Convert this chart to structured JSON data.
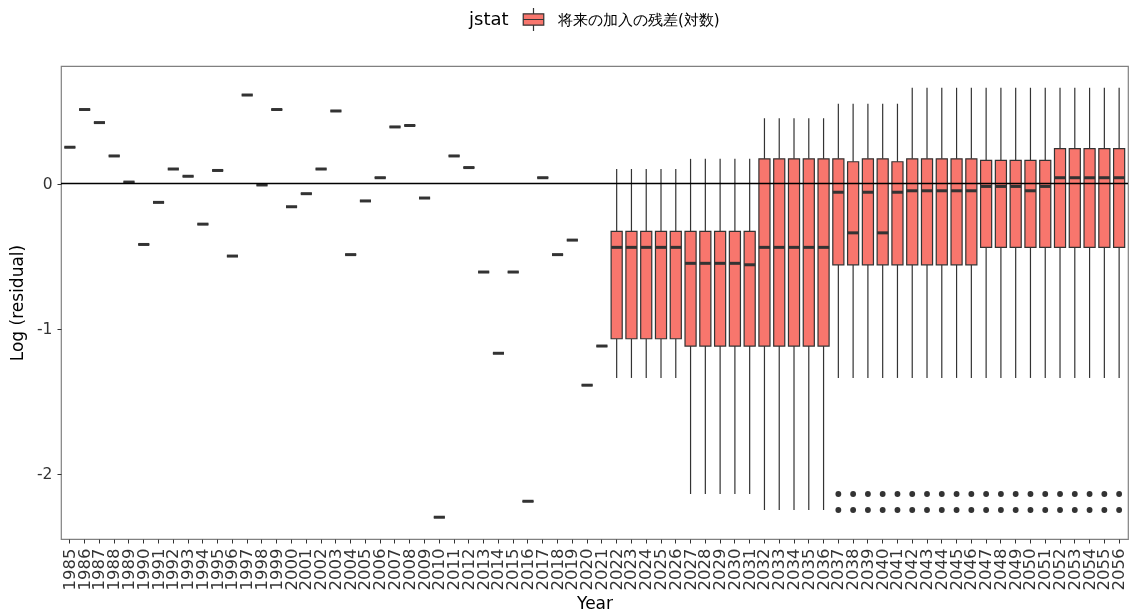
{
  "chart_data": {
    "type": "box",
    "xlabel": "Year",
    "ylabel": "Log (residual)",
    "legend_title": "jstat",
    "legend": "top",
    "categories": [
      "1985",
      "1986",
      "1987",
      "1988",
      "1989",
      "1990",
      "1991",
      "1992",
      "1993",
      "1994",
      "1995",
      "1996",
      "1997",
      "1998",
      "1999",
      "2000",
      "2001",
      "2002",
      "2003",
      "2004",
      "2005",
      "2006",
      "2007",
      "2008",
      "2009",
      "2010",
      "2011",
      "2012",
      "2013",
      "2014",
      "2015",
      "2016",
      "2017",
      "2018",
      "2019",
      "2020",
      "2021",
      "2022",
      "2023",
      "2024",
      "2025",
      "2026",
      "2027",
      "2028",
      "2029",
      "2030",
      "2031",
      "2032",
      "2033",
      "2034",
      "2035",
      "2036",
      "2037",
      "2038",
      "2039",
      "2040",
      "2041",
      "2042",
      "2043",
      "2044",
      "2045",
      "2046",
      "2047",
      "2048",
      "2049",
      "2050",
      "2051",
      "2052",
      "2053",
      "2054",
      "2055",
      "2056"
    ],
    "ylim": [
      -2.45,
      0.81
    ],
    "yticks": [
      -2,
      -1,
      0
    ],
    "ref_lines": [
      {
        "axis": "y",
        "value": 0
      }
    ],
    "series": [
      {
        "color": "#333333",
        "boxes": [
          {
            "low": 0.25,
            "q1": 0.25,
            "median": 0.25,
            "q3": 0.25,
            "high": 0.25
          },
          {
            "low": 0.51,
            "q1": 0.51,
            "median": 0.51,
            "q3": 0.51,
            "high": 0.51
          },
          {
            "low": 0.42,
            "q1": 0.42,
            "median": 0.42,
            "q3": 0.42,
            "high": 0.42
          },
          {
            "low": 0.19,
            "q1": 0.19,
            "median": 0.19,
            "q3": 0.19,
            "high": 0.19
          },
          {
            "low": 0.01,
            "q1": 0.01,
            "median": 0.01,
            "q3": 0.01,
            "high": 0.01
          },
          {
            "low": -0.42,
            "q1": -0.42,
            "median": -0.42,
            "q3": -0.42,
            "high": -0.42
          },
          {
            "low": -0.13,
            "q1": -0.13,
            "median": -0.13,
            "q3": -0.13,
            "high": -0.13
          },
          {
            "low": 0.1,
            "q1": 0.1,
            "median": 0.1,
            "q3": 0.1,
            "high": 0.1
          },
          {
            "low": 0.05,
            "q1": 0.05,
            "median": 0.05,
            "q3": 0.05,
            "high": 0.05
          },
          {
            "low": -0.28,
            "q1": -0.28,
            "median": -0.28,
            "q3": -0.28,
            "high": -0.28
          },
          {
            "low": 0.09,
            "q1": 0.09,
            "median": 0.09,
            "q3": 0.09,
            "high": 0.09
          },
          {
            "low": -0.5,
            "q1": -0.5,
            "median": -0.5,
            "q3": -0.5,
            "high": -0.5
          },
          {
            "low": 0.61,
            "q1": 0.61,
            "median": 0.61,
            "q3": 0.61,
            "high": 0.61
          },
          {
            "low": -0.01,
            "q1": -0.01,
            "median": -0.01,
            "q3": -0.01,
            "high": -0.01
          },
          {
            "low": 0.51,
            "q1": 0.51,
            "median": 0.51,
            "q3": 0.51,
            "high": 0.51
          },
          {
            "low": -0.16,
            "q1": -0.16,
            "median": -0.16,
            "q3": -0.16,
            "high": -0.16
          },
          {
            "low": -0.07,
            "q1": -0.07,
            "median": -0.07,
            "q3": -0.07,
            "high": -0.07
          },
          {
            "low": 0.1,
            "q1": 0.1,
            "median": 0.1,
            "q3": 0.1,
            "high": 0.1
          },
          {
            "low": 0.5,
            "q1": 0.5,
            "median": 0.5,
            "q3": 0.5,
            "high": 0.5
          },
          {
            "low": -0.49,
            "q1": -0.49,
            "median": -0.49,
            "q3": -0.49,
            "high": -0.49
          },
          {
            "low": -0.12,
            "q1": -0.12,
            "median": -0.12,
            "q3": -0.12,
            "high": -0.12
          },
          {
            "low": 0.04,
            "q1": 0.04,
            "median": 0.04,
            "q3": 0.04,
            "high": 0.04
          },
          {
            "low": 0.39,
            "q1": 0.39,
            "median": 0.39,
            "q3": 0.39,
            "high": 0.39
          },
          {
            "low": 0.4,
            "q1": 0.4,
            "median": 0.4,
            "q3": 0.4,
            "high": 0.4
          },
          {
            "low": -0.1,
            "q1": -0.1,
            "median": -0.1,
            "q3": -0.1,
            "high": -0.1
          },
          {
            "low": -2.3,
            "q1": -2.3,
            "median": -2.3,
            "q3": -2.3,
            "high": -2.3
          },
          {
            "low": 0.19,
            "q1": 0.19,
            "median": 0.19,
            "q3": 0.19,
            "high": 0.19
          },
          {
            "low": 0.11,
            "q1": 0.11,
            "median": 0.11,
            "q3": 0.11,
            "high": 0.11
          },
          {
            "low": -0.61,
            "q1": -0.61,
            "median": -0.61,
            "q3": -0.61,
            "high": -0.61
          },
          {
            "low": -1.17,
            "q1": -1.17,
            "median": -1.17,
            "q3": -1.17,
            "high": -1.17
          },
          {
            "low": -0.61,
            "q1": -0.61,
            "median": -0.61,
            "q3": -0.61,
            "high": -0.61
          },
          {
            "low": -2.19,
            "q1": -2.19,
            "median": -2.19,
            "q3": -2.19,
            "high": -2.19
          },
          {
            "low": 0.04,
            "q1": 0.04,
            "median": 0.04,
            "q3": 0.04,
            "high": 0.04
          },
          {
            "low": -0.49,
            "q1": -0.49,
            "median": -0.49,
            "q3": -0.49,
            "high": -0.49
          },
          {
            "low": -0.39,
            "q1": -0.39,
            "median": -0.39,
            "q3": -0.39,
            "high": -0.39
          },
          {
            "low": -1.39,
            "q1": -1.39,
            "median": -1.39,
            "q3": -1.39,
            "high": -1.39
          },
          {
            "low": -1.12,
            "q1": -1.12,
            "median": -1.12,
            "q3": -1.12,
            "high": -1.12
          },
          null,
          null,
          null,
          null,
          null,
          null,
          null,
          null,
          null,
          null,
          null,
          null,
          null,
          null,
          null,
          null,
          null,
          null,
          null,
          null,
          null,
          null,
          null,
          null,
          null,
          null,
          null,
          null,
          null,
          null,
          null,
          null,
          null,
          null,
          null
        ]
      },
      {
        "name": "将来の加入の残差(対数)",
        "color": "#f8766d",
        "boxes": [
          null,
          null,
          null,
          null,
          null,
          null,
          null,
          null,
          null,
          null,
          null,
          null,
          null,
          null,
          null,
          null,
          null,
          null,
          null,
          null,
          null,
          null,
          null,
          null,
          null,
          null,
          null,
          null,
          null,
          null,
          null,
          null,
          null,
          null,
          null,
          null,
          null,
          {
            "low": -1.34,
            "q1": -1.07,
            "median": -0.44,
            "q3": -0.33,
            "high": 0.1
          },
          {
            "low": -1.34,
            "q1": -1.07,
            "median": -0.44,
            "q3": -0.33,
            "high": 0.1
          },
          {
            "low": -1.34,
            "q1": -1.07,
            "median": -0.44,
            "q3": -0.33,
            "high": 0.1
          },
          {
            "low": -1.34,
            "q1": -1.07,
            "median": -0.44,
            "q3": -0.33,
            "high": 0.1
          },
          {
            "low": -1.34,
            "q1": -1.07,
            "median": -0.44,
            "q3": -0.33,
            "high": 0.1
          },
          {
            "low": -2.14,
            "q1": -1.12,
            "median": -0.55,
            "q3": -0.33,
            "high": 0.17
          },
          {
            "low": -2.14,
            "q1": -1.12,
            "median": -0.55,
            "q3": -0.33,
            "high": 0.17
          },
          {
            "low": -2.14,
            "q1": -1.12,
            "median": -0.55,
            "q3": -0.33,
            "high": 0.17
          },
          {
            "low": -2.14,
            "q1": -1.12,
            "median": -0.55,
            "q3": -0.33,
            "high": 0.17
          },
          {
            "low": -2.14,
            "q1": -1.12,
            "median": -0.56,
            "q3": -0.33,
            "high": 0.17
          },
          {
            "low": -2.25,
            "q1": -1.12,
            "median": -0.44,
            "q3": 0.17,
            "high": 0.45
          },
          {
            "low": -2.25,
            "q1": -1.12,
            "median": -0.44,
            "q3": 0.17,
            "high": 0.45
          },
          {
            "low": -2.25,
            "q1": -1.12,
            "median": -0.44,
            "q3": 0.17,
            "high": 0.45
          },
          {
            "low": -2.25,
            "q1": -1.12,
            "median": -0.44,
            "q3": 0.17,
            "high": 0.45
          },
          {
            "low": -2.25,
            "q1": -1.12,
            "median": -0.44,
            "q3": 0.17,
            "high": 0.45
          },
          {
            "low": -1.34,
            "q1": -0.56,
            "median": -0.06,
            "q3": 0.17,
            "high": 0.55,
            "outliers": [
              -2.14,
              -2.25
            ]
          },
          {
            "low": -1.34,
            "q1": -0.56,
            "median": -0.34,
            "q3": 0.15,
            "high": 0.55,
            "outliers": [
              -2.14,
              -2.25
            ]
          },
          {
            "low": -1.34,
            "q1": -0.56,
            "median": -0.06,
            "q3": 0.17,
            "high": 0.55,
            "outliers": [
              -2.14,
              -2.25
            ]
          },
          {
            "low": -1.34,
            "q1": -0.56,
            "median": -0.34,
            "q3": 0.17,
            "high": 0.55,
            "outliers": [
              -2.14,
              -2.25
            ]
          },
          {
            "low": -1.34,
            "q1": -0.56,
            "median": -0.06,
            "q3": 0.15,
            "high": 0.55,
            "outliers": [
              -2.14,
              -2.25
            ]
          },
          {
            "low": -1.34,
            "q1": -0.56,
            "median": -0.05,
            "q3": 0.17,
            "high": 0.66,
            "outliers": [
              -2.14,
              -2.25
            ]
          },
          {
            "low": -1.34,
            "q1": -0.56,
            "median": -0.05,
            "q3": 0.17,
            "high": 0.66,
            "outliers": [
              -2.14,
              -2.25
            ]
          },
          {
            "low": -1.34,
            "q1": -0.56,
            "median": -0.05,
            "q3": 0.17,
            "high": 0.66,
            "outliers": [
              -2.14,
              -2.25
            ]
          },
          {
            "low": -1.34,
            "q1": -0.56,
            "median": -0.05,
            "q3": 0.17,
            "high": 0.66,
            "outliers": [
              -2.14,
              -2.25
            ]
          },
          {
            "low": -1.34,
            "q1": -0.56,
            "median": -0.05,
            "q3": 0.17,
            "high": 0.66,
            "outliers": [
              -2.14,
              -2.25
            ]
          },
          {
            "low": -1.34,
            "q1": -0.44,
            "median": -0.02,
            "q3": 0.16,
            "high": 0.66,
            "outliers": [
              -2.14,
              -2.25
            ]
          },
          {
            "low": -1.34,
            "q1": -0.44,
            "median": -0.02,
            "q3": 0.16,
            "high": 0.66,
            "outliers": [
              -2.14,
              -2.25
            ]
          },
          {
            "low": -1.34,
            "q1": -0.44,
            "median": -0.02,
            "q3": 0.16,
            "high": 0.66,
            "outliers": [
              -2.14,
              -2.25
            ]
          },
          {
            "low": -1.34,
            "q1": -0.44,
            "median": -0.05,
            "q3": 0.16,
            "high": 0.66,
            "outliers": [
              -2.14,
              -2.25
            ]
          },
          {
            "low": -1.34,
            "q1": -0.44,
            "median": -0.02,
            "q3": 0.16,
            "high": 0.66,
            "outliers": [
              -2.14,
              -2.25
            ]
          },
          {
            "low": -1.34,
            "q1": -0.44,
            "median": 0.04,
            "q3": 0.24,
            "high": 0.66,
            "outliers": [
              -2.14,
              -2.25
            ]
          },
          {
            "low": -1.34,
            "q1": -0.44,
            "median": 0.04,
            "q3": 0.24,
            "high": 0.66,
            "outliers": [
              -2.14,
              -2.25
            ]
          },
          {
            "low": -1.34,
            "q1": -0.44,
            "median": 0.04,
            "q3": 0.24,
            "high": 0.66,
            "outliers": [
              -2.14,
              -2.25
            ]
          },
          {
            "low": -1.34,
            "q1": -0.44,
            "median": 0.04,
            "q3": 0.24,
            "high": 0.66,
            "outliers": [
              -2.14,
              -2.25
            ]
          },
          {
            "low": -1.34,
            "q1": -0.44,
            "median": 0.04,
            "q3": 0.24,
            "high": 0.66,
            "outliers": [
              -2.14,
              -2.25
            ]
          }
        ]
      }
    ]
  }
}
